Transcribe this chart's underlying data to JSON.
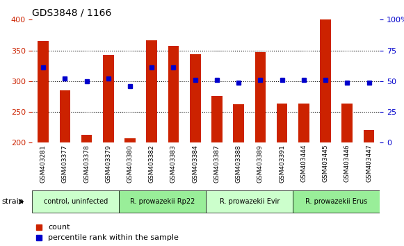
{
  "title": "GDS3848 / 1166",
  "samples": [
    "GSM403281",
    "GSM403377",
    "GSM403378",
    "GSM403379",
    "GSM403380",
    "GSM403382",
    "GSM403383",
    "GSM403384",
    "GSM403387",
    "GSM403388",
    "GSM403389",
    "GSM403391",
    "GSM403444",
    "GSM403445",
    "GSM403446",
    "GSM403447"
  ],
  "counts": [
    365,
    285,
    213,
    343,
    207,
    366,
    357,
    344,
    276,
    262,
    347,
    264,
    264,
    400,
    264,
    221
  ],
  "percentiles": [
    61,
    52,
    50,
    52,
    46,
    61,
    61,
    51,
    51,
    49,
    51,
    51,
    51,
    51,
    49,
    49
  ],
  "bar_color": "#cc2200",
  "dot_color": "#0000cc",
  "ymin": 200,
  "ymax": 400,
  "yticks": [
    200,
    250,
    300,
    350,
    400
  ],
  "y2min": 0,
  "y2max": 100,
  "y2ticks": [
    0,
    25,
    50,
    75,
    100
  ],
  "y2ticklabels": [
    "0",
    "25",
    "50",
    "75",
    "100%"
  ],
  "groups": [
    {
      "label": "control, uninfected",
      "start": 0,
      "end": 4,
      "color": "#ccffcc"
    },
    {
      "label": "R. prowazekii Rp22",
      "start": 4,
      "end": 8,
      "color": "#99ee99"
    },
    {
      "label": "R. prowazekii Evir",
      "start": 8,
      "end": 12,
      "color": "#ccffcc"
    },
    {
      "label": "R. prowazekii Erus",
      "start": 12,
      "end": 16,
      "color": "#99ee99"
    }
  ],
  "legend_count_label": "count",
  "legend_pct_label": "percentile rank within the sample",
  "strain_label": "strain"
}
